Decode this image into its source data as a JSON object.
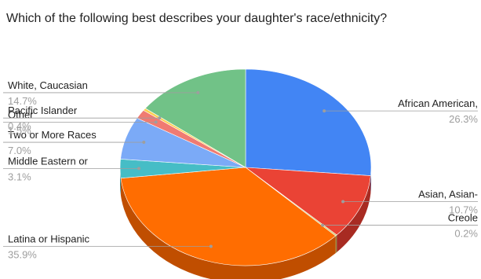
{
  "chart_data": {
    "type": "pie",
    "style": "3d",
    "title": "Which of the following best describes your daughter's race/ethnicity?",
    "slices": [
      {
        "label": "African American,",
        "value": 26.3,
        "display": "26.3%",
        "color": "#4285f4",
        "side_color": "#2b5cb0"
      },
      {
        "label": "Asian, Asian-",
        "value": 10.7,
        "display": "10.7%",
        "color": "#ea4335",
        "side_color": "#a82b22"
      },
      {
        "label": "Creole",
        "value": 0.2,
        "display": "0.2%",
        "color": "#c9c25a",
        "side_color": "#8f8a3c"
      },
      {
        "label": "Latina or Hispanic",
        "value": 35.9,
        "display": "35.9%",
        "color": "#ff6d01",
        "side_color": "#c04e00"
      },
      {
        "label": "Middle Eastern or",
        "value": 3.1,
        "display": "3.1%",
        "color": "#46bdc6",
        "side_color": "#2e878e"
      },
      {
        "label": "Two or More Races",
        "value": 7.0,
        "display": "7.0%",
        "color": "#7baaf7",
        "side_color": "#5579b5"
      },
      {
        "label": "Other",
        "value": 1.5,
        "display": "1.5%",
        "color": "#f07b72",
        "side_color": "#b55a53"
      },
      {
        "label": "Pacific Islander",
        "value": 0.4,
        "display": "0.4%",
        "color": "#fcd04f",
        "side_color": "#bf9a34"
      },
      {
        "label": "White, Caucasian",
        "value": 14.7,
        "display": "14.7%",
        "color": "#71c287",
        "side_color": "#4e8f60"
      }
    ]
  }
}
